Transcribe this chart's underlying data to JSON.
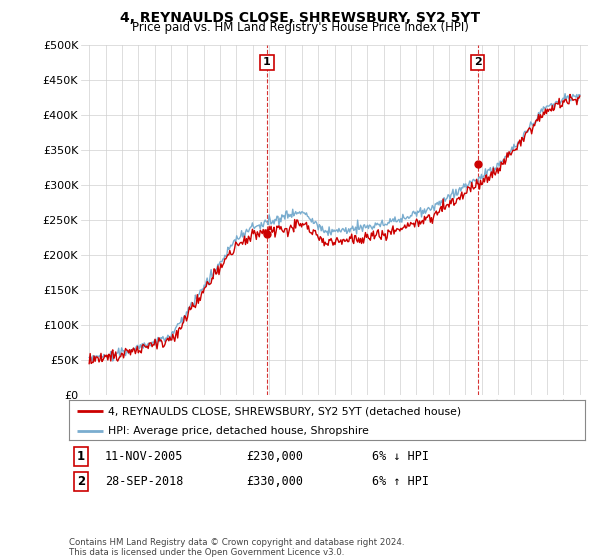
{
  "title": "4, REYNAULDS CLOSE, SHREWSBURY, SY2 5YT",
  "subtitle": "Price paid vs. HM Land Registry's House Price Index (HPI)",
  "ylabel_ticks": [
    "£0",
    "£50K",
    "£100K",
    "£150K",
    "£200K",
    "£250K",
    "£300K",
    "£350K",
    "£400K",
    "£450K",
    "£500K"
  ],
  "ytick_values": [
    0,
    50000,
    100000,
    150000,
    200000,
    250000,
    300000,
    350000,
    400000,
    450000,
    500000
  ],
  "xlim_start": 1994.5,
  "xlim_end": 2025.5,
  "ylim": [
    0,
    500000
  ],
  "sale1_year": 2005.87,
  "sale1_price": 230000,
  "sale2_year": 2018.75,
  "sale2_price": 330000,
  "label1_date": "11-NOV-2005",
  "label1_price": "£230,000",
  "label1_pct": "6% ↓ HPI",
  "label2_date": "28-SEP-2018",
  "label2_price": "£330,000",
  "label2_pct": "6% ↑ HPI",
  "legend_property": "4, REYNAULDS CLOSE, SHREWSBURY, SY2 5YT (detached house)",
  "legend_hpi": "HPI: Average price, detached house, Shropshire",
  "footnote": "Contains HM Land Registry data © Crown copyright and database right 2024.\nThis data is licensed under the Open Government Licence v3.0.",
  "color_property": "#cc0000",
  "color_hpi": "#7aadcf",
  "background": "#ffffff"
}
